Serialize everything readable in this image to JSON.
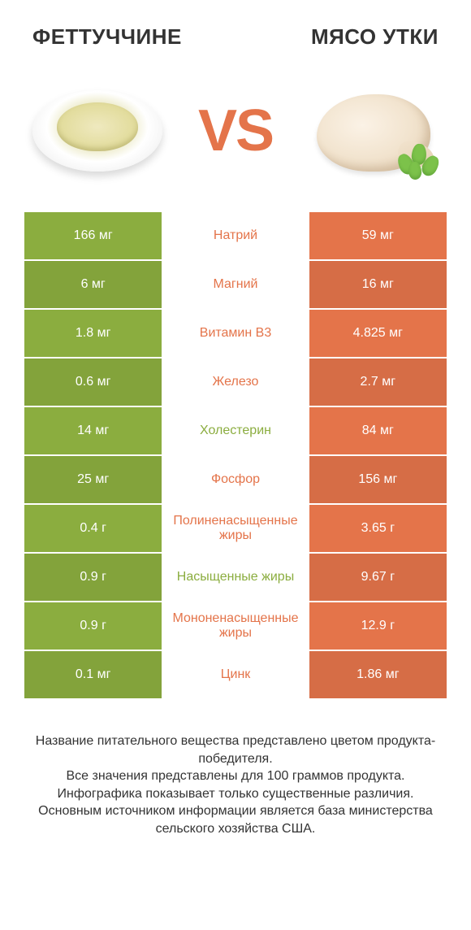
{
  "colors": {
    "green": "#8bad3f",
    "orange": "#e4744a",
    "row_alt_darken": 0.94
  },
  "header": {
    "left_title": "ФЕТТУЧЧИНЕ",
    "right_title": "МЯСО УТКИ",
    "vs": "VS"
  },
  "rows": [
    {
      "left": "166 мг",
      "label": "Натрий",
      "right": "59 мг",
      "winner": "right"
    },
    {
      "left": "6 мг",
      "label": "Магний",
      "right": "16 мг",
      "winner": "right"
    },
    {
      "left": "1.8 мг",
      "label": "Витамин B3",
      "right": "4.825 мг",
      "winner": "right"
    },
    {
      "left": "0.6 мг",
      "label": "Железо",
      "right": "2.7 мг",
      "winner": "right"
    },
    {
      "left": "14 мг",
      "label": "Холестерин",
      "right": "84 мг",
      "winner": "left"
    },
    {
      "left": "25 мг",
      "label": "Фосфор",
      "right": "156 мг",
      "winner": "right"
    },
    {
      "left": "0.4 г",
      "label": "Полиненасыщенные жиры",
      "right": "3.65 г",
      "winner": "right"
    },
    {
      "left": "0.9 г",
      "label": "Насыщенные жиры",
      "right": "9.67 г",
      "winner": "left"
    },
    {
      "left": "0.9 г",
      "label": "Мононенасыщенные жиры",
      "right": "12.9 г",
      "winner": "right"
    },
    {
      "left": "0.1 мг",
      "label": "Цинк",
      "right": "1.86 мг",
      "winner": "right"
    }
  ],
  "footer": {
    "l1": "Название питательного вещества представлено цветом продукта-победителя.",
    "l2": "Все значения представлены для 100 граммов продукта.",
    "l3": "Инфографика показывает только существенные различия.",
    "l4": "Основным источником информации является база министерства сельского хозяйства США."
  }
}
